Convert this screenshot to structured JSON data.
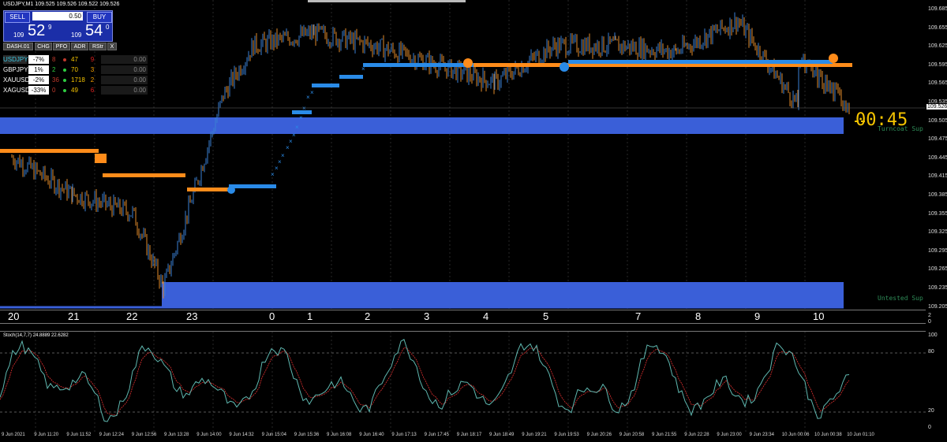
{
  "window_title": "USDJPY,M1  109.525 109.526 109.522 109.526",
  "trade_panel": {
    "sell_label": "SELL",
    "buy_label": "BUY",
    "lot": "0.50",
    "sell_small": "109",
    "sell_big": "52",
    "sell_sup": "9",
    "buy_small": "109",
    "buy_big": "54",
    "buy_sup": "0"
  },
  "dashboard": {
    "tab": "DASH.01",
    "headers": [
      "CHG",
      "PFO",
      "ADR",
      "RStr",
      "X"
    ],
    "rows": [
      {
        "symbol": "USDJPY",
        "chg": "-7%",
        "pfo": "8",
        "adr": "47",
        "rstr": "9",
        "value": "0.00",
        "symbol_color": "#39c5e0",
        "pfo_color": "#c0392b",
        "dot_color": "#c0392b",
        "adr_color": "#f5c400",
        "rstr_color": "#e02020"
      },
      {
        "symbol": "GBPJPY",
        "chg": "1%",
        "pfo": "2",
        "adr": "70",
        "rstr": "3",
        "value": "0.00",
        "symbol_color": "#ffffff",
        "pfo_color": "#2ecc40",
        "dot_color": "#2ecc40",
        "adr_color": "#f5c400",
        "rstr_color": "#f5a000"
      },
      {
        "symbol": "XAUUSD",
        "chg": "-2%",
        "pfo": "36",
        "adr": "1718",
        "rstr": "2",
        "value": "0.00",
        "symbol_color": "#ffffff",
        "pfo_color": "#c0392b",
        "dot_color": "#2ecc40",
        "adr_color": "#f5c400",
        "rstr_color": "#f5a000"
      },
      {
        "symbol": "XAGUSD",
        "chg": "-33%",
        "pfo": "0",
        "adr": "49",
        "rstr": "6",
        "value": "0.00",
        "symbol_color": "#ffffff",
        "pfo_color": "#c0392b",
        "dot_color": "#2ecc40",
        "adr_color": "#f5c400",
        "rstr_color": "#e02020"
      }
    ]
  },
  "price_axis": [
    "109.685",
    "109.655",
    "109.625",
    "109.595",
    "109.565",
    "109.535",
    "109.505",
    "109.475",
    "109.445",
    "109.415",
    "109.385",
    "109.355",
    "109.325",
    "109.295",
    "109.265",
    "109.235",
    "109.205"
  ],
  "current_price_tag": "109.526",
  "hour_labels": [
    "20",
    "21",
    "22",
    "23",
    "0",
    "1",
    "2",
    "3",
    "4",
    "5",
    "7",
    "8",
    "9",
    "10"
  ],
  "countdown": "00:45",
  "zone_labels": {
    "upper": "Turncoat Sup",
    "lower": "Untested Sup"
  },
  "separator_scale": {
    "top": "2",
    "bottom": "0"
  },
  "stochastic": {
    "label": "Stoch(14,7,7) 24.8889 22.6282",
    "levels": [
      "100",
      "80",
      "20",
      "0"
    ]
  },
  "time_axis": [
    "9 Jun 2021",
    "9 Jun 11:20",
    "9 Jun 11:52",
    "9 Jun 12:24",
    "9 Jun 12:56",
    "9 Jun 13:28",
    "9 Jun 14:00",
    "9 Jun 14:32",
    "9 Jun 15:04",
    "9 Jun 15:36",
    "9 Jun 16:08",
    "9 Jun 16:40",
    "9 Jun 17:13",
    "9 Jun 17:45",
    "9 Jun 18:17",
    "9 Jun 18:49",
    "9 Jun 19:21",
    "9 Jun 19:53",
    "9 Jun 20:26",
    "9 Jun 20:58",
    "9 Jun 21:55",
    "9 Jun 22:28",
    "9 Jun 23:00",
    "9 Jun 23:34",
    "10 Jun 00:06",
    "10 Jun 00:38",
    "10 Jun 01:10"
  ],
  "colors": {
    "zone": "#3a5fd8",
    "orange_line": "#ff8c1a",
    "blue_line": "#2a8be8",
    "candle_up": "#3a7fd5",
    "candle_down": "#e08a2a",
    "stoch_main": "#5fb8b0",
    "stoch_signal": "#e03030",
    "countdown": "#f5c400"
  },
  "chart_data": {
    "type": "line",
    "title": "",
    "price_series_approx": [
      {
        "hour": "20",
        "price": 109.445
      },
      {
        "hour": "21",
        "price": 109.385
      },
      {
        "hour": "22",
        "price": 109.355
      },
      {
        "hour": "22.5",
        "price": 109.235
      },
      {
        "hour": "23",
        "price": 109.385
      },
      {
        "hour": "23.5",
        "price": 109.545
      },
      {
        "hour": "0",
        "price": 109.625
      },
      {
        "hour": "1",
        "price": 109.645
      },
      {
        "hour": "2",
        "price": 109.625
      },
      {
        "hour": "3",
        "price": 109.595
      },
      {
        "hour": "4",
        "price": 109.565
      },
      {
        "hour": "5",
        "price": 109.625
      },
      {
        "hour": "7",
        "price": 109.625
      },
      {
        "hour": "8",
        "price": 109.615
      },
      {
        "hour": "9",
        "price": 109.665
      },
      {
        "hour": "10",
        "price": 109.526
      }
    ],
    "ylim": [
      109.2,
      109.7
    ]
  }
}
